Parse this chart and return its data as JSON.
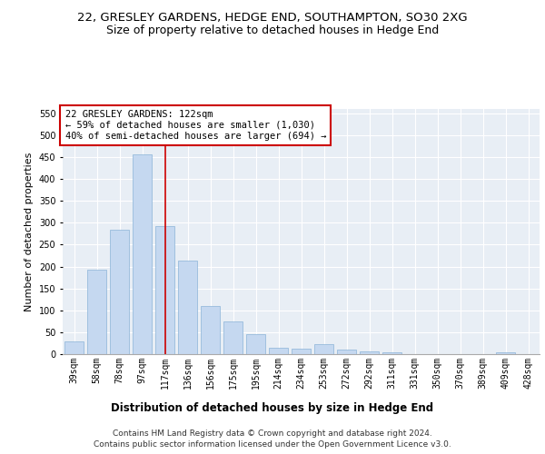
{
  "title": "22, GRESLEY GARDENS, HEDGE END, SOUTHAMPTON, SO30 2XG",
  "subtitle": "Size of property relative to detached houses in Hedge End",
  "xlabel": "Distribution of detached houses by size in Hedge End",
  "ylabel": "Number of detached properties",
  "categories": [
    "39sqm",
    "58sqm",
    "78sqm",
    "97sqm",
    "117sqm",
    "136sqm",
    "156sqm",
    "175sqm",
    "195sqm",
    "214sqm",
    "234sqm",
    "253sqm",
    "272sqm",
    "292sqm",
    "311sqm",
    "331sqm",
    "350sqm",
    "370sqm",
    "389sqm",
    "409sqm",
    "428sqm"
  ],
  "values": [
    30,
    192,
    285,
    457,
    293,
    213,
    110,
    75,
    46,
    14,
    12,
    22,
    10,
    6,
    5,
    0,
    0,
    0,
    0,
    5,
    0
  ],
  "bar_color": "#c5d8f0",
  "bar_edge_color": "#8ab4d8",
  "vline_x": 4,
  "vline_color": "#cc0000",
  "annotation_box_text": "22 GRESLEY GARDENS: 122sqm\n← 59% of detached houses are smaller (1,030)\n40% of semi-detached houses are larger (694) →",
  "annotation_box_color": "#cc0000",
  "ylim": [
    0,
    560
  ],
  "yticks": [
    0,
    50,
    100,
    150,
    200,
    250,
    300,
    350,
    400,
    450,
    500,
    550
  ],
  "background_color": "#e8eef5",
  "footer_line1": "Contains HM Land Registry data © Crown copyright and database right 2024.",
  "footer_line2": "Contains public sector information licensed under the Open Government Licence v3.0.",
  "title_fontsize": 9.5,
  "subtitle_fontsize": 9,
  "xlabel_fontsize": 8.5,
  "ylabel_fontsize": 8,
  "tick_fontsize": 7,
  "footer_fontsize": 6.5,
  "annot_fontsize": 7.5
}
